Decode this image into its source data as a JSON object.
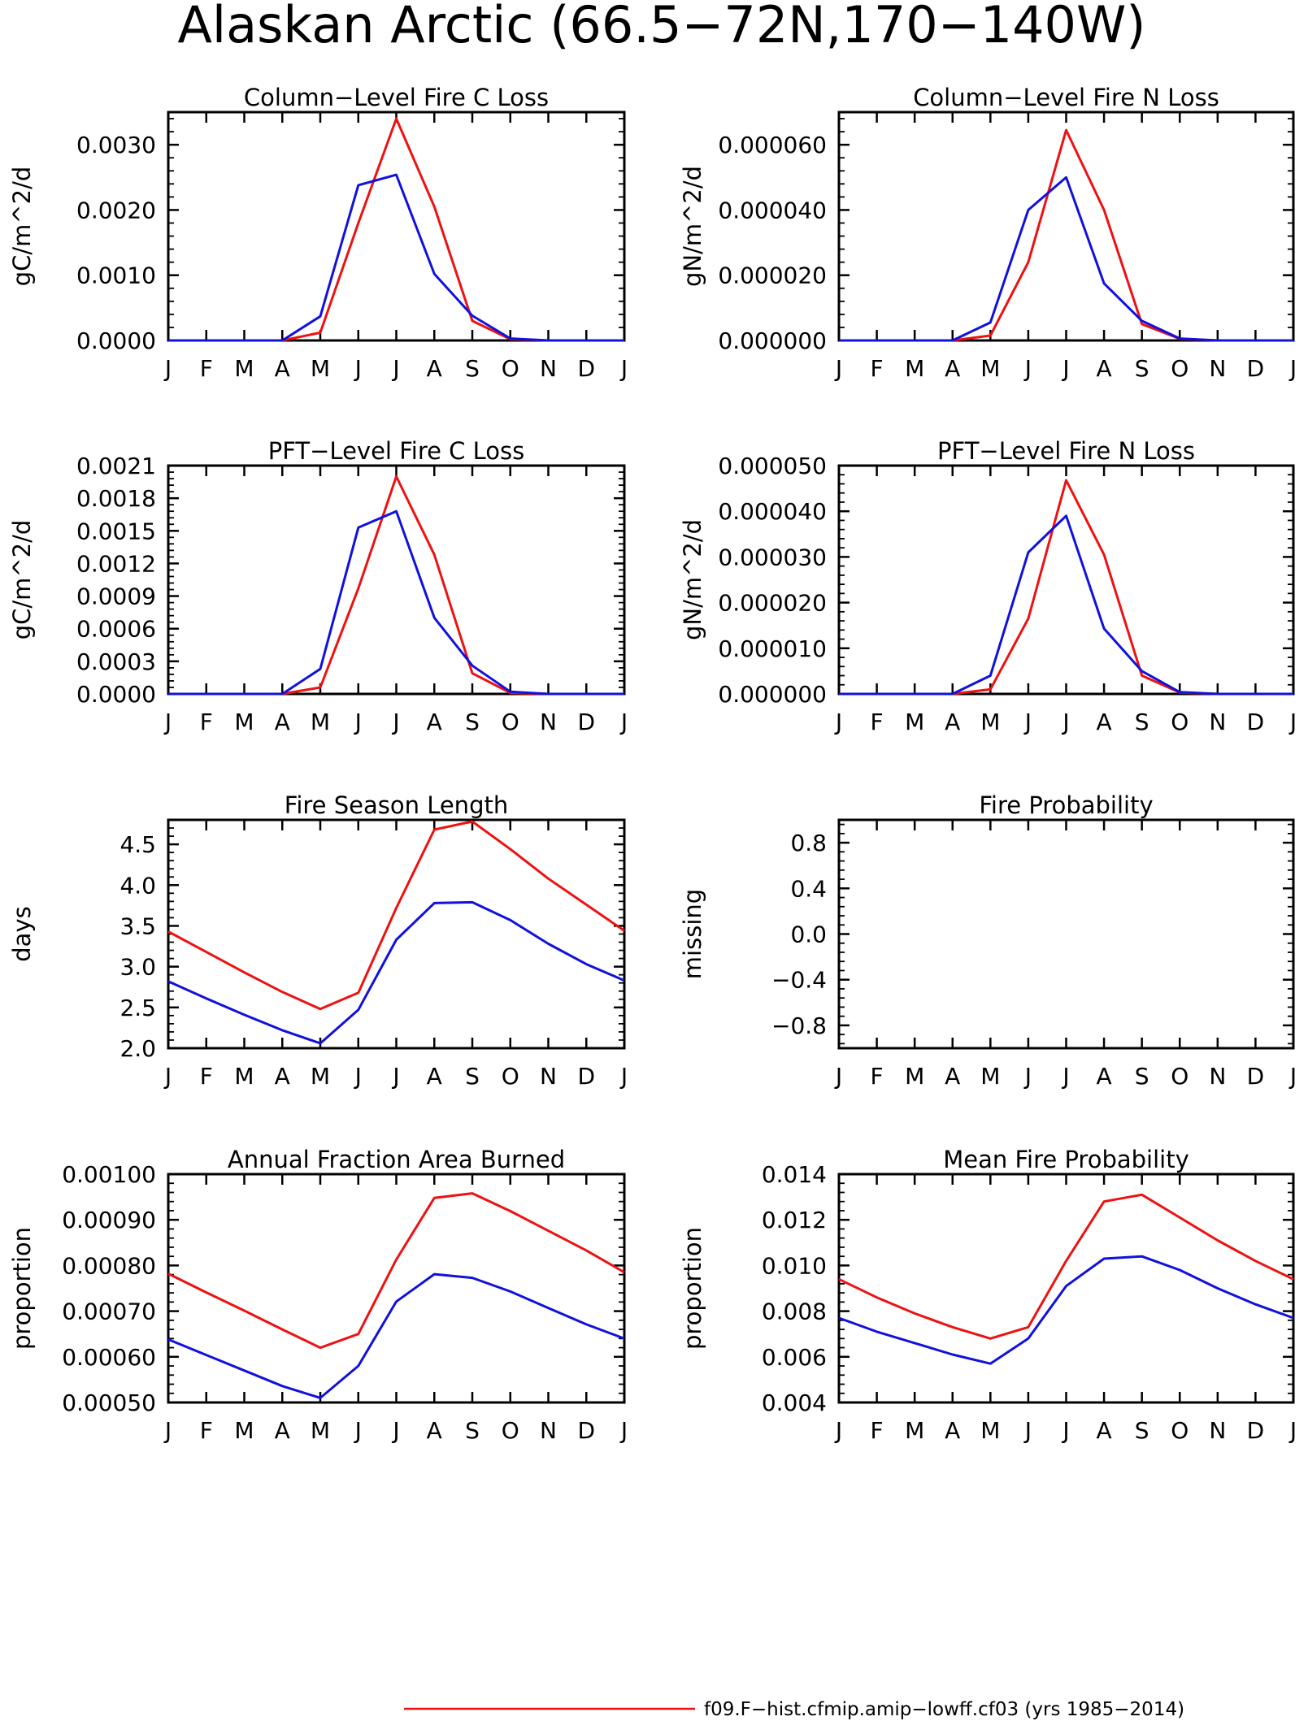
{
  "figure_title": "Alaskan Arctic (66.5−72N,170−140W)",
  "colors": {
    "case_red": "#ee1111",
    "case_blue": "#1111dd"
  },
  "legend": [
    {
      "label": "f09.F−hist.cfmip.amip−lowff.cf03 (yrs 1985−2014)",
      "color": "#ee1111"
    }
  ],
  "chart_data": [
    {
      "type": "line",
      "title": "Column−Level Fire C Loss",
      "ylabel": "gC/m^2/d",
      "categories": [
        "J",
        "F",
        "M",
        "A",
        "M",
        "J",
        "J",
        "A",
        "S",
        "O",
        "N",
        "D",
        "J"
      ],
      "ylim": [
        0,
        0.0035
      ],
      "yticks": [
        "0.0000",
        "0.0010",
        "0.0020",
        "0.0030"
      ],
      "series": [
        {
          "color": "#ee1111",
          "values": [
            0,
            0,
            0,
            0,
            0.00012,
            0.0018,
            0.0034,
            0.00205,
            0.0003,
            2e-05,
            0,
            0,
            0
          ]
        },
        {
          "color": "#1111dd",
          "values": [
            0,
            0,
            0,
            0,
            0.00037,
            0.00238,
            0.00254,
            0.00102,
            0.00038,
            3e-05,
            0,
            0,
            0
          ]
        }
      ]
    },
    {
      "type": "line",
      "title": "Column−Level Fire N Loss",
      "ylabel": "gN/m^2/d",
      "categories": [
        "J",
        "F",
        "M",
        "A",
        "M",
        "J",
        "J",
        "A",
        "S",
        "O",
        "N",
        "D",
        "J"
      ],
      "ylim": [
        0,
        7e-05
      ],
      "yticks": [
        "0.000000",
        "0.000020",
        "0.000040",
        "0.000060"
      ],
      "series": [
        {
          "color": "#ee1111",
          "values": [
            0,
            0,
            0,
            0,
            1.5e-06,
            2.4e-05,
            6.45e-05,
            4e-05,
            5e-06,
            5e-07,
            0,
            0,
            0
          ]
        },
        {
          "color": "#1111dd",
          "values": [
            0,
            0,
            0,
            0,
            5.5e-06,
            4e-05,
            5e-05,
            1.75e-05,
            6e-06,
            6e-07,
            0,
            0,
            0
          ]
        }
      ]
    },
    {
      "type": "line",
      "title": "PFT−Level Fire C Loss",
      "ylabel": "gC/m^2/d",
      "categories": [
        "J",
        "F",
        "M",
        "A",
        "M",
        "J",
        "J",
        "A",
        "S",
        "O",
        "N",
        "D",
        "J"
      ],
      "ylim": [
        0,
        0.0021
      ],
      "yticks": [
        "0.0000",
        "0.0003",
        "0.0006",
        "0.0009",
        "0.0012",
        "0.0015",
        "0.0018",
        "0.0021"
      ],
      "series": [
        {
          "color": "#ee1111",
          "values": [
            0,
            0,
            0,
            0,
            6e-05,
            0.00097,
            0.002,
            0.00128,
            0.00019,
            1e-05,
            0,
            0,
            0
          ]
        },
        {
          "color": "#1111dd",
          "values": [
            0,
            0,
            0,
            0,
            0.00023,
            0.00153,
            0.00168,
            0.0007,
            0.00026,
            2e-05,
            0,
            0,
            0
          ]
        }
      ]
    },
    {
      "type": "line",
      "title": "PFT−Level Fire N Loss",
      "ylabel": "gN/m^2/d",
      "categories": [
        "J",
        "F",
        "M",
        "A",
        "M",
        "J",
        "J",
        "A",
        "S",
        "O",
        "N",
        "D",
        "J"
      ],
      "ylim": [
        0,
        5e-05
      ],
      "yticks": [
        "0.000000",
        "0.000010",
        "0.000020",
        "0.000030",
        "0.000040",
        "0.000050"
      ],
      "series": [
        {
          "color": "#ee1111",
          "values": [
            0,
            0,
            0,
            0,
            1e-06,
            1.65e-05,
            4.68e-05,
            3.05e-05,
            4e-06,
            3e-07,
            0,
            0,
            0
          ]
        },
        {
          "color": "#1111dd",
          "values": [
            0,
            0,
            0,
            0,
            4e-06,
            3.1e-05,
            3.9e-05,
            1.43e-05,
            5e-06,
            4e-07,
            0,
            0,
            0
          ]
        }
      ]
    },
    {
      "type": "line",
      "title": "Fire Season Length",
      "ylabel": "days",
      "categories": [
        "J",
        "F",
        "M",
        "A",
        "M",
        "J",
        "J",
        "A",
        "S",
        "O",
        "N",
        "D",
        "J"
      ],
      "ylim": [
        2.0,
        4.8
      ],
      "yticks": [
        "2.0",
        "2.5",
        "3.0",
        "3.5",
        "4.0",
        "4.5"
      ],
      "series": [
        {
          "color": "#ee1111",
          "values": [
            3.43,
            3.18,
            2.93,
            2.69,
            2.48,
            2.68,
            3.72,
            4.68,
            4.78,
            4.44,
            4.08,
            3.76,
            3.44
          ]
        },
        {
          "color": "#1111dd",
          "values": [
            2.82,
            2.61,
            2.41,
            2.22,
            2.06,
            2.47,
            3.33,
            3.78,
            3.79,
            3.57,
            3.28,
            3.03,
            2.83
          ]
        }
      ]
    },
    {
      "type": "line",
      "title": "Fire Probability",
      "ylabel": "missing",
      "categories": [
        "J",
        "F",
        "M",
        "A",
        "M",
        "J",
        "J",
        "A",
        "S",
        "O",
        "N",
        "D",
        "J"
      ],
      "ylim": [
        -1.0,
        1.0
      ],
      "yticks": [
        "−0.8",
        "−0.4",
        "0.0",
        "0.4",
        "0.8"
      ],
      "series": []
    },
    {
      "type": "line",
      "title": "Annual Fraction Area Burned",
      "ylabel": "proportion",
      "categories": [
        "J",
        "F",
        "M",
        "A",
        "M",
        "J",
        "J",
        "A",
        "S",
        "O",
        "N",
        "D",
        "J"
      ],
      "ylim": [
        0.0005,
        0.001
      ],
      "yticks": [
        "0.00050",
        "0.00060",
        "0.00070",
        "0.00080",
        "0.00090",
        "0.00100"
      ],
      "series": [
        {
          "color": "#ee1111",
          "values": [
            0.000782,
            0.000741,
            0.000701,
            0.00066,
            0.00062,
            0.00065,
            0.000813,
            0.000948,
            0.000958,
            0.000919,
            0.000876,
            0.000833,
            0.000785
          ]
        },
        {
          "color": "#1111dd",
          "values": [
            0.000638,
            0.000604,
            0.00057,
            0.000536,
            0.00051,
            0.00058,
            0.000721,
            0.000781,
            0.000773,
            0.000743,
            0.000707,
            0.000671,
            0.00064
          ]
        }
      ]
    },
    {
      "type": "line",
      "title": "Mean Fire Probability",
      "ylabel": "proportion",
      "categories": [
        "J",
        "F",
        "M",
        "A",
        "M",
        "J",
        "J",
        "A",
        "S",
        "O",
        "N",
        "D",
        "J"
      ],
      "ylim": [
        0.004,
        0.014
      ],
      "yticks": [
        "0.004",
        "0.006",
        "0.008",
        "0.010",
        "0.012",
        "0.014"
      ],
      "series": [
        {
          "color": "#ee1111",
          "values": [
            0.0094,
            0.0086,
            0.0079,
            0.0073,
            0.0068,
            0.0073,
            0.0102,
            0.0128,
            0.0131,
            0.0121,
            0.0111,
            0.0102,
            0.0094
          ]
        },
        {
          "color": "#1111dd",
          "values": [
            0.0077,
            0.0071,
            0.0066,
            0.0061,
            0.0057,
            0.0068,
            0.0091,
            0.0103,
            0.0104,
            0.0098,
            0.009,
            0.0083,
            0.0077
          ]
        }
      ]
    }
  ]
}
